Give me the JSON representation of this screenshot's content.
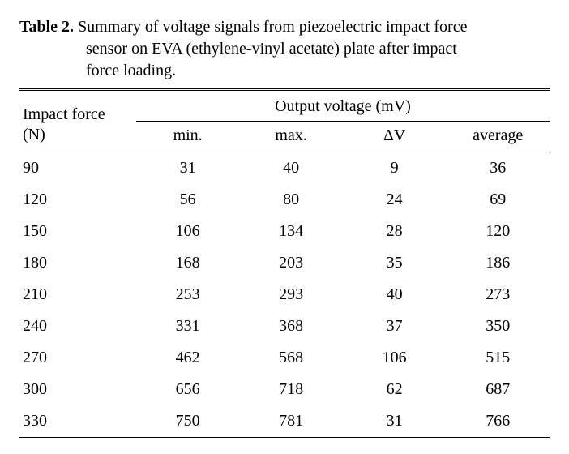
{
  "caption": {
    "label": "Table 2.",
    "text_line1": " Summary of voltage signals from piezoelectric impact force",
    "text_line2": "sensor on EVA (ethylene-vinyl acetate) plate after impact",
    "text_line3": "force loading."
  },
  "table": {
    "type": "table",
    "header": {
      "impact_force_l1": "Impact force",
      "impact_force_l2": "(N)",
      "output_voltage": "Output voltage (mV)",
      "sub": [
        "min.",
        "max.",
        "ΔV",
        "average"
      ]
    },
    "column_widths_pct": [
      22,
      19.5,
      19.5,
      19.5,
      19.5
    ],
    "alignments": [
      "left",
      "center",
      "center",
      "center",
      "center"
    ],
    "rows": [
      [
        "90",
        "31",
        "40",
        "9",
        "36"
      ],
      [
        "120",
        "56",
        "80",
        "24",
        "69"
      ],
      [
        "150",
        "106",
        "134",
        "28",
        "120"
      ],
      [
        "180",
        "168",
        "203",
        "35",
        "186"
      ],
      [
        "210",
        "253",
        "293",
        "40",
        "273"
      ],
      [
        "240",
        "331",
        "368",
        "37",
        "350"
      ],
      [
        "270",
        "462",
        "568",
        "106",
        "515"
      ],
      [
        "300",
        "656",
        "718",
        "62",
        "687"
      ],
      [
        "330",
        "750",
        "781",
        "31",
        "766"
      ]
    ],
    "background_color": "#ffffff",
    "text_color": "#000000",
    "rule_color": "#000000",
    "font_size_pt": 15
  }
}
